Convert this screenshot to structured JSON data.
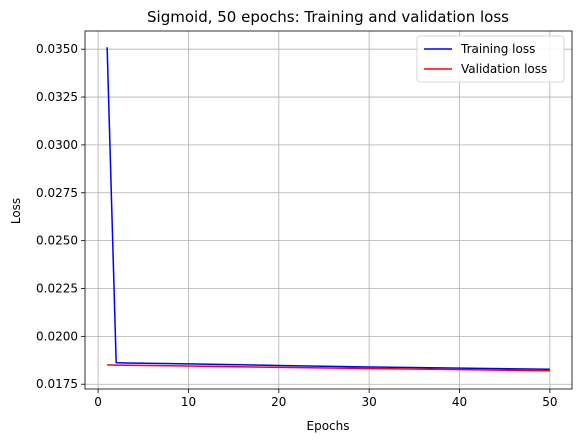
{
  "chart_data": {
    "type": "line",
    "title": "Sigmoid, 50 epochs: Training and validation loss",
    "xlabel": "Epochs",
    "ylabel": "Loss",
    "xlim": [
      -1.45,
      52.45
    ],
    "ylim": [
      0.01725,
      0.03595
    ],
    "xticks": [
      0,
      10,
      20,
      30,
      40,
      50
    ],
    "yticks": [
      0.0175,
      0.02,
      0.0225,
      0.025,
      0.0275,
      0.03,
      0.0325,
      0.035
    ],
    "ytick_labels": [
      "0.0175",
      "0.0200",
      "0.0225",
      "0.0250",
      "0.0275",
      "0.0300",
      "0.0325",
      "0.0350"
    ],
    "grid": true,
    "legend_position": "top-right",
    "series": [
      {
        "name": "Training loss",
        "color": "#0000ff",
        "x": [
          1,
          2,
          10,
          20,
          30,
          40,
          50
        ],
        "y": [
          0.0351,
          0.01862,
          0.01856,
          0.01848,
          0.0184,
          0.01834,
          0.01828
        ]
      },
      {
        "name": "Validation loss",
        "color": "#ff0000",
        "x": [
          1,
          2,
          10,
          20,
          30,
          40,
          50
        ],
        "y": [
          0.01851,
          0.0185,
          0.01845,
          0.01838,
          0.01832,
          0.01826,
          0.0182
        ]
      }
    ]
  }
}
